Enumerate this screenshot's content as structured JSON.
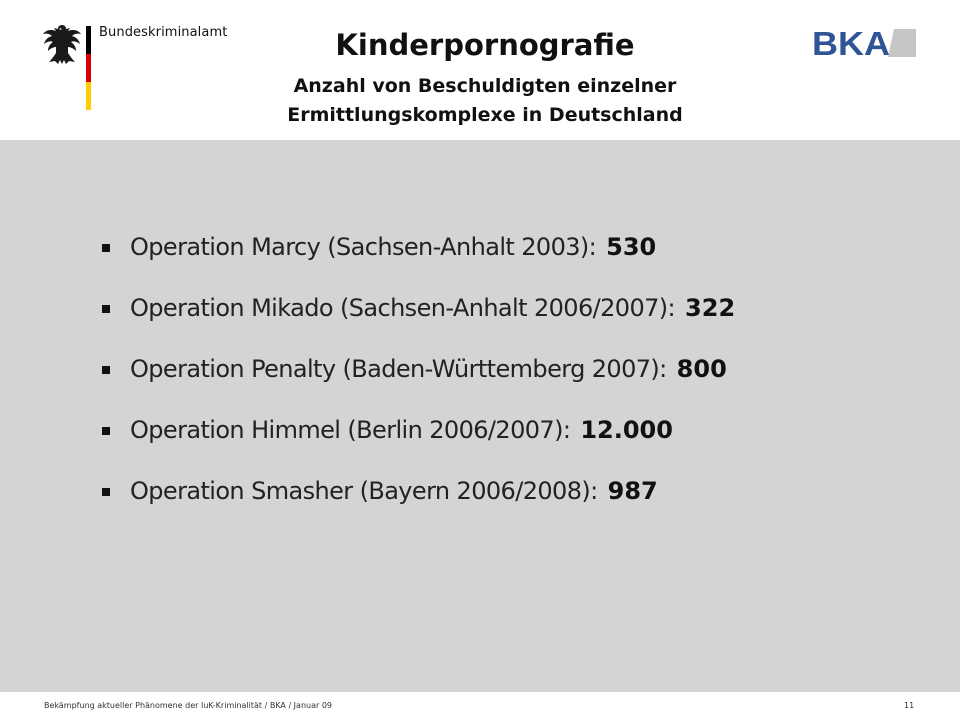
{
  "header": {
    "agency_name": "Bundeskriminalamt",
    "title": "Kinderpornografie",
    "subtitle_line1": "Anzahl von Beschuldigten einzelner",
    "subtitle_line2": "Ermittlungskomplexe in Deutschland",
    "logo_text": "BKA",
    "flag_colors": [
      "#000000",
      "#dd0000",
      "#ffce00"
    ],
    "logo_color": "#2f5597"
  },
  "items": [
    {
      "label": "Operation Marcy (Sachsen-Anhalt 2003):",
      "value": "530"
    },
    {
      "label": "Operation Mikado (Sachsen-Anhalt 2006/2007):",
      "value": "322"
    },
    {
      "label": "Operation Penalty (Baden-Württemberg 2007):",
      "value": "800"
    },
    {
      "label": "Operation Himmel (Berlin 2006/2007):",
      "value": "12.000"
    },
    {
      "label": "Operation Smasher (Bayern 2006/2008):",
      "value": "987"
    }
  ],
  "footer": {
    "text": "Bekämpfung aktueller Phänomene der IuK-Kriminalität  / BKA / Januar 09",
    "page_number": "11"
  }
}
